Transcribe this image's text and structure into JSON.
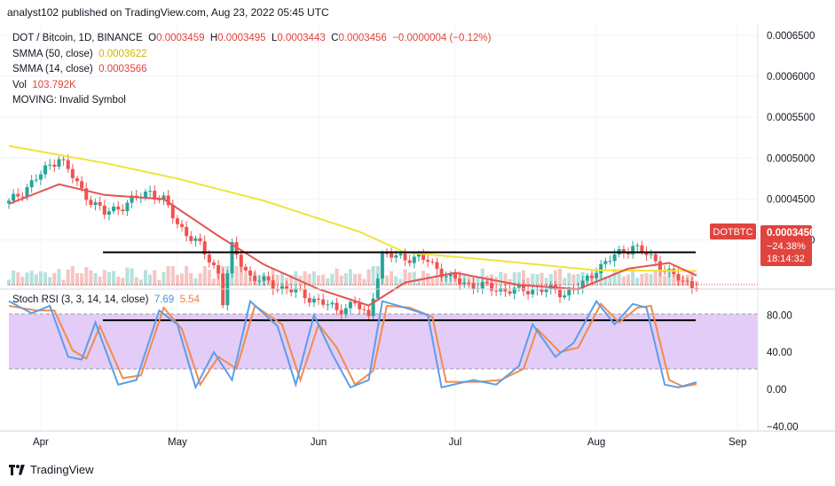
{
  "header": {
    "publisher_line": "analyst102 published on TradingView.com, Aug 23, 2022 05:45 UTC"
  },
  "legend": {
    "symbol": "DOT / Bitcoin, 1D, BINANCE",
    "open_label": "O",
    "open": "0.0003459",
    "high_label": "H",
    "high": "0.0003495",
    "low_label": "L",
    "low": "0.0003443",
    "close_label": "C",
    "close": "0.0003456",
    "change": "−0.0000004 (−0.12%)",
    "sma50_label": "SMMA (50, close)",
    "sma50_value": "0.0003622",
    "sma14_label": "SMMA (14, close)",
    "sma14_value": "0.0003566",
    "vol_label": "Vol",
    "vol_value": "103.792K",
    "moving_label": "MOVING: Invalid Symbol"
  },
  "price_axis": {
    "ticks": [
      "0.0006500",
      "0.0006000",
      "0.0005500",
      "0.0005000",
      "0.0004500",
      "0.0004000"
    ],
    "badge_symbol": "DOTBTC",
    "badge_price": "0.0003456",
    "badge_change": "−24.38%",
    "badge_countdown": "18:14:32"
  },
  "stoch": {
    "label": "Stoch RSI (3, 3, 14, 14, close)",
    "k_value": "7.69",
    "d_value": "5.54",
    "ticks": [
      "80.00",
      "40.00",
      "0.00",
      "−40.00"
    ]
  },
  "time_axis": {
    "ticks": [
      "Apr",
      "May",
      "Jun",
      "Jul",
      "Aug",
      "Sep"
    ]
  },
  "footer": {
    "brand": "TradingView"
  },
  "colors": {
    "sma50": "#f2e33a",
    "sma14": "#e55353",
    "bull": "#26a69a",
    "bear": "#ef5350",
    "stoch_k": "#5b9ee8",
    "stoch_d": "#f28c4a",
    "band": "#e3ccf7",
    "badge": "#e0443c"
  },
  "chart_data": [
    {
      "type": "candlestick",
      "title": "DOT / Bitcoin, 1D, BINANCE",
      "x_range": [
        "2022-03-25",
        "2022-08-23"
      ],
      "ylim": [
        0.00034,
        0.000665
      ],
      "x_ticks": [
        "Apr",
        "May",
        "Jun",
        "Jul",
        "Aug",
        "Sep"
      ],
      "y_ticks": [
        0.00065,
        0.0006,
        0.00055,
        0.0005,
        0.00045,
        0.0004
      ],
      "close_path_points": [
        [
          "2022-03-25",
          0.000445
        ],
        [
          "2022-04-01",
          0.00048
        ],
        [
          "2022-04-05",
          0.000502
        ],
        [
          "2022-04-10",
          0.00046
        ],
        [
          "2022-04-15",
          0.000432
        ],
        [
          "2022-04-20",
          0.000445
        ],
        [
          "2022-04-25",
          0.00046
        ],
        [
          "2022-04-28",
          0.000448
        ],
        [
          "2022-05-01",
          0.00042
        ],
        [
          "2022-05-06",
          0.000392
        ],
        [
          "2022-05-10",
          0.00036
        ],
        [
          "2022-05-11",
          0.000325
        ],
        [
          "2022-05-13",
          0.00039
        ],
        [
          "2022-05-17",
          0.000355
        ],
        [
          "2022-05-22",
          0.000345
        ],
        [
          "2022-05-28",
          0.000335
        ],
        [
          "2022-06-01",
          0.000325
        ],
        [
          "2022-06-05",
          0.000315
        ],
        [
          "2022-06-09",
          0.000322
        ],
        [
          "2022-06-12",
          0.000305
        ],
        [
          "2022-06-13",
          0.000335
        ],
        [
          "2022-06-15",
          0.00038
        ],
        [
          "2022-06-19",
          0.00038
        ],
        [
          "2022-06-25",
          0.000375
        ],
        [
          "2022-06-30",
          0.000352
        ],
        [
          "2022-07-05",
          0.000345
        ],
        [
          "2022-07-10",
          0.00034
        ],
        [
          "2022-07-15",
          0.000338
        ],
        [
          "2022-07-20",
          0.00034
        ],
        [
          "2022-07-25",
          0.000335
        ],
        [
          "2022-07-29",
          0.000345
        ],
        [
          "2022-08-01",
          0.000365
        ],
        [
          "2022-08-05",
          0.00038
        ],
        [
          "2022-08-09",
          0.000393
        ],
        [
          "2022-08-13",
          0.000378
        ],
        [
          "2022-08-17",
          0.00036
        ],
        [
          "2022-08-20",
          0.000348
        ],
        [
          "2022-08-23",
          0.0003456
        ]
      ],
      "sma50_points": [
        [
          "2022-03-25",
          0.000515
        ],
        [
          "2022-04-15",
          0.000494
        ],
        [
          "2022-05-01",
          0.000475
        ],
        [
          "2022-05-20",
          0.000448
        ],
        [
          "2022-06-10",
          0.00041
        ],
        [
          "2022-06-20",
          0.000385
        ],
        [
          "2022-07-10",
          0.000375
        ],
        [
          "2022-08-01",
          0.000363
        ],
        [
          "2022-08-23",
          0.0003622
        ]
      ],
      "sma14_points": [
        [
          "2022-03-25",
          0.000444
        ],
        [
          "2022-04-05",
          0.000468
        ],
        [
          "2022-04-15",
          0.000455
        ],
        [
          "2022-04-28",
          0.00045
        ],
        [
          "2022-05-10",
          0.000405
        ],
        [
          "2022-05-20",
          0.00037
        ],
        [
          "2022-06-01",
          0.00034
        ],
        [
          "2022-06-12",
          0.00032
        ],
        [
          "2022-06-20",
          0.000348
        ],
        [
          "2022-07-01",
          0.00036
        ],
        [
          "2022-07-15",
          0.000345
        ],
        [
          "2022-07-28",
          0.00034
        ],
        [
          "2022-08-08",
          0.000365
        ],
        [
          "2022-08-17",
          0.000372
        ],
        [
          "2022-08-23",
          0.0003566
        ]
      ],
      "horizontal_lines": [
        0.000385,
        0.000302
      ]
    },
    {
      "type": "line",
      "title": "Stoch RSI (3, 3, 14, 14, close)",
      "ylim": [
        -45,
        108
      ],
      "y_ticks": [
        80,
        40,
        0,
        -40
      ],
      "band": [
        20,
        80
      ],
      "series": [
        {
          "name": "K",
          "points": [
            [
              "2022-03-25",
              95
            ],
            [
              "2022-03-30",
              82
            ],
            [
              "2022-04-03",
              90
            ],
            [
              "2022-04-07",
              35
            ],
            [
              "2022-04-10",
              32
            ],
            [
              "2022-04-13",
              72
            ],
            [
              "2022-04-18",
              5
            ],
            [
              "2022-04-22",
              10
            ],
            [
              "2022-04-27",
              85
            ],
            [
              "2022-05-01",
              70
            ],
            [
              "2022-05-05",
              2
            ],
            [
              "2022-05-09",
              40
            ],
            [
              "2022-05-13",
              10
            ],
            [
              "2022-05-17",
              95
            ],
            [
              "2022-05-23",
              68
            ],
            [
              "2022-05-27",
              5
            ],
            [
              "2022-05-31",
              80
            ],
            [
              "2022-06-04",
              38
            ],
            [
              "2022-06-08",
              2
            ],
            [
              "2022-06-12",
              10
            ],
            [
              "2022-06-15",
              95
            ],
            [
              "2022-06-20",
              88
            ],
            [
              "2022-06-25",
              80
            ],
            [
              "2022-06-28",
              2
            ],
            [
              "2022-07-05",
              10
            ],
            [
              "2022-07-10",
              5
            ],
            [
              "2022-07-15",
              25
            ],
            [
              "2022-07-18",
              70
            ],
            [
              "2022-07-23",
              35
            ],
            [
              "2022-07-27",
              50
            ],
            [
              "2022-08-01",
              95
            ],
            [
              "2022-08-05",
              70
            ],
            [
              "2022-08-09",
              92
            ],
            [
              "2022-08-12",
              88
            ],
            [
              "2022-08-16",
              5
            ],
            [
              "2022-08-19",
              2
            ],
            [
              "2022-08-23",
              7.69
            ]
          ]
        },
        {
          "name": "D",
          "points": [
            [
              "2022-03-25",
              90
            ],
            [
              "2022-03-31",
              85
            ],
            [
              "2022-04-04",
              85
            ],
            [
              "2022-04-08",
              42
            ],
            [
              "2022-04-11",
              33
            ],
            [
              "2022-04-14",
              68
            ],
            [
              "2022-04-19",
              12
            ],
            [
              "2022-04-23",
              15
            ],
            [
              "2022-04-28",
              88
            ],
            [
              "2022-05-02",
              65
            ],
            [
              "2022-05-06",
              5
            ],
            [
              "2022-05-10",
              35
            ],
            [
              "2022-05-14",
              22
            ],
            [
              "2022-05-18",
              90
            ],
            [
              "2022-05-24",
              70
            ],
            [
              "2022-05-28",
              10
            ],
            [
              "2022-06-01",
              70
            ],
            [
              "2022-06-05",
              45
            ],
            [
              "2022-06-09",
              5
            ],
            [
              "2022-06-13",
              20
            ],
            [
              "2022-06-16",
              90
            ],
            [
              "2022-06-21",
              88
            ],
            [
              "2022-06-26",
              78
            ],
            [
              "2022-06-29",
              8
            ],
            [
              "2022-07-06",
              8
            ],
            [
              "2022-07-11",
              10
            ],
            [
              "2022-07-16",
              22
            ],
            [
              "2022-07-19",
              65
            ],
            [
              "2022-07-24",
              40
            ],
            [
              "2022-07-28",
              45
            ],
            [
              "2022-08-02",
              92
            ],
            [
              "2022-08-06",
              72
            ],
            [
              "2022-08-10",
              88
            ],
            [
              "2022-08-13",
              90
            ],
            [
              "2022-08-17",
              10
            ],
            [
              "2022-08-20",
              3
            ],
            [
              "2022-08-23",
              5.54
            ]
          ]
        }
      ]
    }
  ]
}
